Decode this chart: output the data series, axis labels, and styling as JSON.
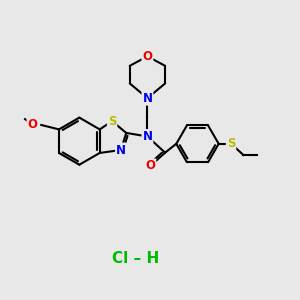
{
  "background_color": "#e8e8e8",
  "atom_colors": {
    "C": "#000000",
    "N": "#0000ee",
    "O": "#ee0000",
    "S": "#bbbb00",
    "H": "#000000",
    "Cl": "#00bb00"
  },
  "bond_color": "#000000",
  "bond_lw": 1.5,
  "font_size_atom": 8.5,
  "font_size_hcl": 11,
  "hcl_color": "#00bb00",
  "hcl_text": "Cl – H",
  "figsize": [
    3.0,
    3.0
  ],
  "dpi": 100
}
